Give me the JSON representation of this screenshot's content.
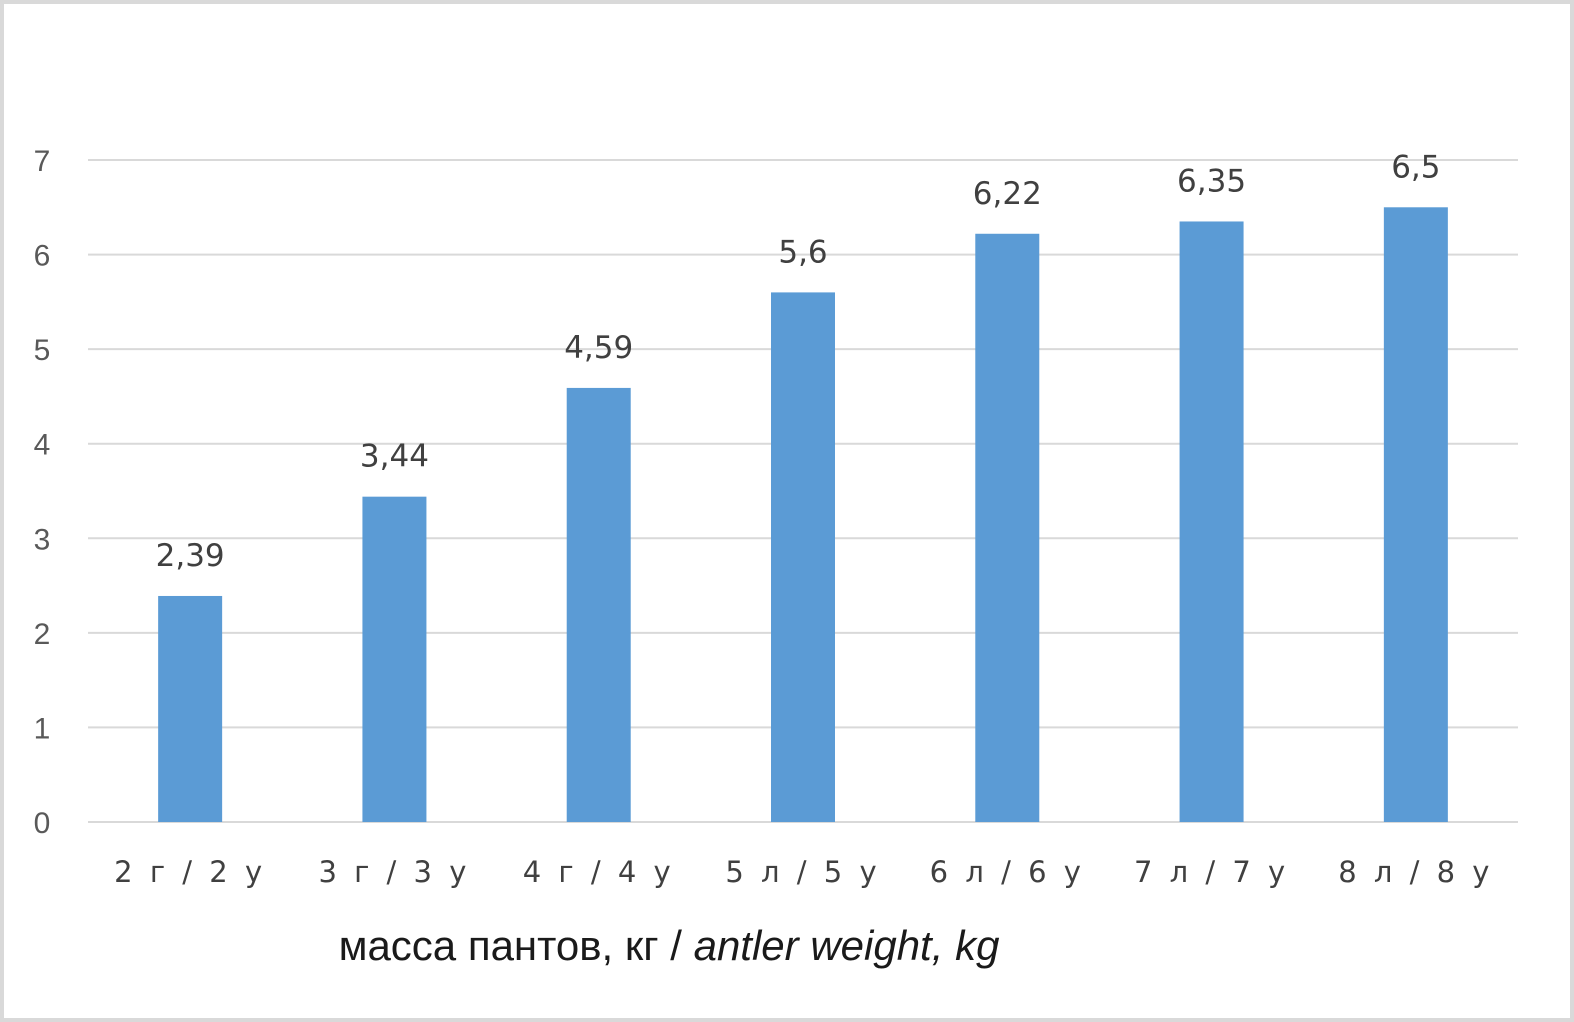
{
  "chart_data": {
    "type": "bar",
    "categories": [
      "2 г / 2 y",
      "3 г / 3 y",
      "4 г / 4 y",
      "5 л / 5 y",
      "6 л / 6 y",
      "7 л / 7 y",
      "8 л / 8 y"
    ],
    "values": [
      2.39,
      3.44,
      4.59,
      5.6,
      6.22,
      6.35,
      6.5
    ],
    "data_labels": [
      "2,39",
      "3,44",
      "4,59",
      "5,6",
      "6,22",
      "6,35",
      "6,5"
    ],
    "y_ticks": [
      0,
      1,
      2,
      3,
      4,
      5,
      6,
      7
    ],
    "ylim": [
      0,
      7
    ],
    "grid": true,
    "bar_color": "#5b9bd5",
    "grid_color": "#d9d9d9",
    "title": "",
    "xlabel": "масса пантов, кг / antler weight, kg",
    "xlabel_ru": "масса пантов, кг / ",
    "xlabel_en": "antler weight, kg",
    "ylabel": ""
  }
}
